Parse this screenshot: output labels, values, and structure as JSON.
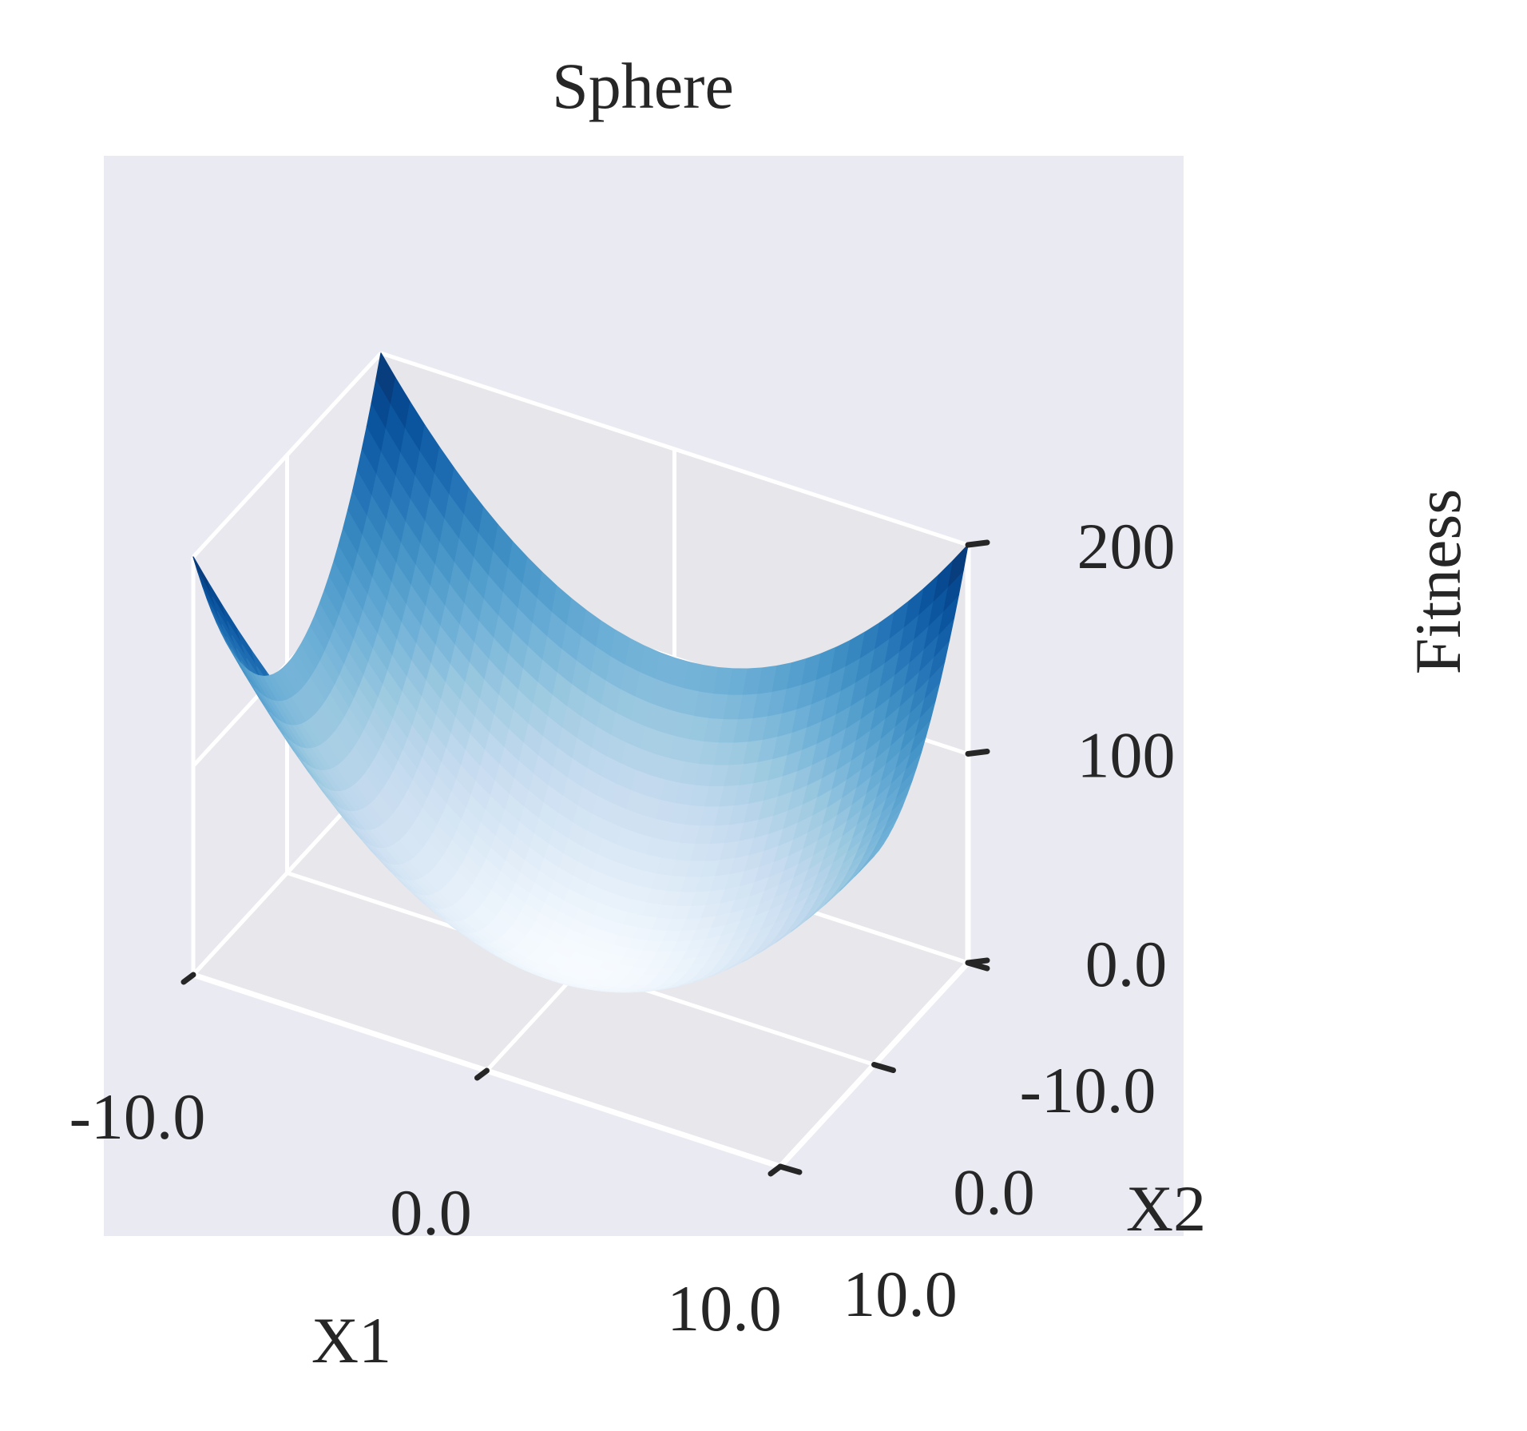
{
  "chart_data": {
    "type": "surface",
    "title": "Sphere",
    "function": "x1^2 + x2^2",
    "colormap": "Blues",
    "x1": {
      "label": "X1",
      "range": [
        -10,
        10
      ],
      "ticks": [
        -10,
        0,
        10
      ],
      "tick_labels": [
        "-10.0",
        "0.0",
        "10.0"
      ]
    },
    "x2": {
      "label": "X2",
      "range": [
        -10,
        10
      ],
      "ticks": [
        -10,
        0,
        10
      ],
      "tick_labels": [
        "-10.0",
        "0.0",
        "10.0"
      ]
    },
    "z": {
      "label": "Fitness",
      "range": [
        0,
        200
      ],
      "ticks": [
        0,
        100,
        200
      ],
      "tick_labels": [
        "0.0",
        "100",
        "200"
      ]
    },
    "grid": true,
    "samples": {
      "x1": [
        -10,
        -5,
        0,
        5,
        10
      ],
      "x2": [
        -10,
        -5,
        0,
        5,
        10
      ],
      "fitness": [
        [
          200,
          125,
          100,
          125,
          200
        ],
        [
          125,
          50,
          25,
          50,
          125
        ],
        [
          100,
          25,
          0,
          25,
          100
        ],
        [
          125,
          50,
          25,
          50,
          125
        ],
        [
          200,
          125,
          100,
          125,
          200
        ]
      ]
    }
  }
}
